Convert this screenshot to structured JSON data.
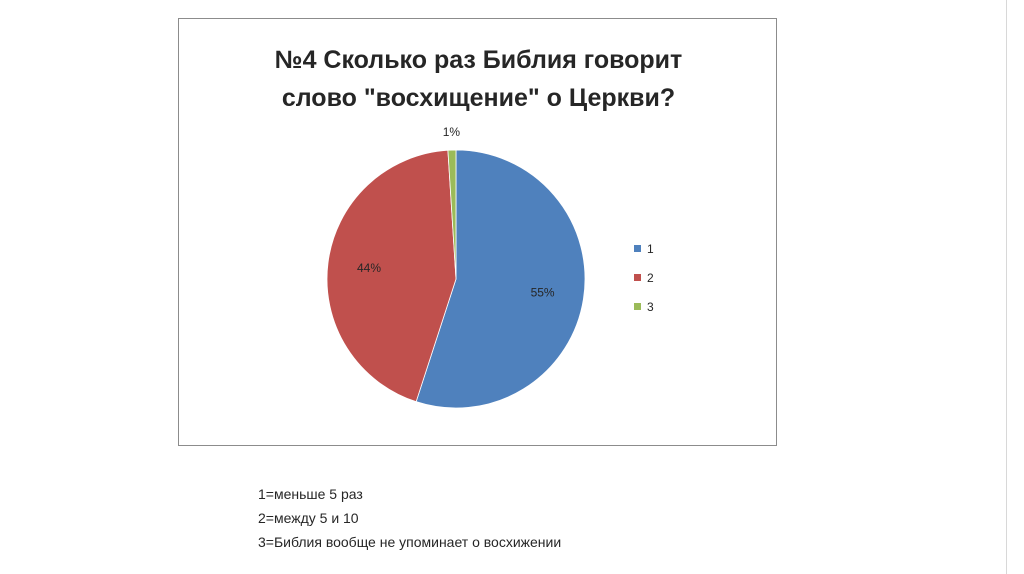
{
  "chart_data": {
    "type": "pie",
    "title_lines": [
      "№4 Сколько раз Библия говорит",
      "слово \"восхищение\" о Церкви?"
    ],
    "categories": [
      "1",
      "2",
      "3"
    ],
    "values": [
      55,
      44,
      1
    ],
    "data_labels": [
      "55%",
      "44%",
      "1%"
    ],
    "colors": [
      "#4f81bd",
      "#c0504d",
      "#9bbb59"
    ],
    "legend_position": "right"
  },
  "notes": [
    "1=меньше 5 раз",
    "2=между 5 и 10",
    "3=Библия вообще не упоминает о восхижении"
  ]
}
